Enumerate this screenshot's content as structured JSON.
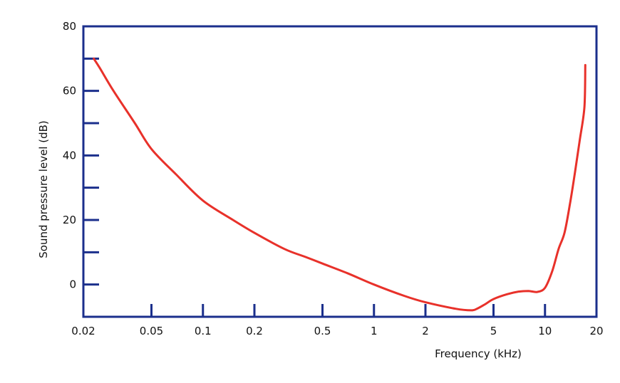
{
  "chart_data": {
    "type": "line",
    "title": "",
    "xlabel": "Frequency (kHz)",
    "ylabel": "Sound pressure level (dB)",
    "xscale": "log",
    "xlim": [
      0.02,
      20
    ],
    "ylim": [
      -10,
      80
    ],
    "grid": false,
    "legend": "none",
    "xticks": [
      {
        "value": 0.02,
        "label": "0.02"
      },
      {
        "value": 0.05,
        "label": "0.05"
      },
      {
        "value": 0.1,
        "label": "0.1"
      },
      {
        "value": 0.2,
        "label": "0.2"
      },
      {
        "value": 0.5,
        "label": "0.5"
      },
      {
        "value": 1,
        "label": "1"
      },
      {
        "value": 2,
        "label": "2"
      },
      {
        "value": 5,
        "label": "5"
      },
      {
        "value": 10,
        "label": "10"
      },
      {
        "value": 20,
        "label": "20"
      }
    ],
    "yticks_labeled": [
      {
        "value": 0,
        "label": "0"
      },
      {
        "value": 20,
        "label": "20"
      },
      {
        "value": 40,
        "label": "40"
      },
      {
        "value": 60,
        "label": "60"
      },
      {
        "value": 80,
        "label": "80"
      }
    ],
    "yticks_minor": [
      10,
      30,
      50,
      70
    ],
    "series": [
      {
        "color": "#e8312a",
        "x": [
          0.023,
          0.025,
          0.03,
          0.04,
          0.05,
          0.07,
          0.1,
          0.15,
          0.2,
          0.3,
          0.4,
          0.5,
          0.7,
          1,
          1.5,
          2,
          3,
          3.7,
          4,
          4.5,
          5,
          6,
          7,
          8,
          9,
          10,
          11,
          12,
          13,
          14,
          15,
          16,
          17,
          17.2
        ],
        "y": [
          70,
          67,
          60,
          50,
          42,
          34,
          26,
          20,
          16,
          11,
          8.5,
          6.5,
          3.5,
          0,
          -3.5,
          -5.5,
          -7.5,
          -8,
          -7.5,
          -6,
          -4.5,
          -3,
          -2.2,
          -2,
          -2.3,
          -1,
          4,
          11,
          16,
          25,
          35,
          45,
          55,
          68
        ]
      }
    ],
    "colors": {
      "axis": "#1b2f8c",
      "line": "#e8312a"
    }
  }
}
